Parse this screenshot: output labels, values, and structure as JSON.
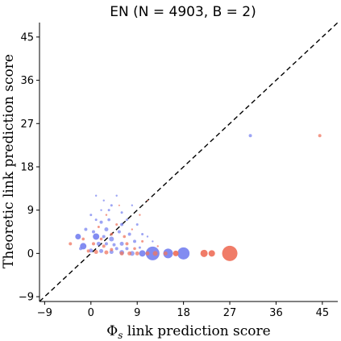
{
  "chart_data": {
    "type": "scatter",
    "title": "EN (N = 4903, B = 2)",
    "xlabel_symbol": "Φ",
    "xlabel_sub": "s",
    "xlabel_rest": " link prediction score",
    "ylabel": "Theoretic link prediction score",
    "xlim": [
      -10,
      48
    ],
    "ylim": [
      -10,
      48
    ],
    "xticks": [
      -9,
      0,
      9,
      18,
      27,
      36,
      45
    ],
    "yticks": [
      -9,
      0,
      9,
      18,
      27,
      36,
      45
    ],
    "xtick_labels": [
      "−9",
      "0",
      "9",
      "18",
      "27",
      "36",
      "45"
    ],
    "ytick_labels": [
      "−9",
      "0",
      "9",
      "18",
      "27",
      "36",
      "45"
    ],
    "reference_line": "y = x",
    "grid": false,
    "colors": {
      "blue": "#7b86f0",
      "red": "#ef7560"
    },
    "series": [
      {
        "color": "blue",
        "points": [
          {
            "x": 12,
            "y": 0,
            "s": 8.5
          },
          {
            "x": 18,
            "y": 0,
            "s": 7.5
          },
          {
            "x": 15,
            "y": 0,
            "s": 6
          },
          {
            "x": 10,
            "y": 0,
            "s": 4
          },
          {
            "x": 8,
            "y": 0,
            "s": 3
          },
          {
            "x": 6,
            "y": 0.2,
            "s": 3
          },
          {
            "x": 4,
            "y": 0.3,
            "s": 2.5
          },
          {
            "x": 2,
            "y": 0.5,
            "s": 2.5
          },
          {
            "x": 0,
            "y": 0.6,
            "s": 2.5
          },
          {
            "x": 1,
            "y": 3.5,
            "s": 4
          },
          {
            "x": -2.5,
            "y": 3.5,
            "s": 3.5
          },
          {
            "x": -1.5,
            "y": 1.5,
            "s": 4
          },
          {
            "x": 4,
            "y": 3,
            "s": 3
          },
          {
            "x": 6,
            "y": 2,
            "s": 2.5
          },
          {
            "x": 3,
            "y": 5,
            "s": 2.5
          },
          {
            "x": 2,
            "y": 6.5,
            "s": 2
          },
          {
            "x": 3.5,
            "y": 9,
            "s": 1.5
          },
          {
            "x": 5,
            "y": 12,
            "s": 1.2
          },
          {
            "x": 2.5,
            "y": 11,
            "s": 1.2
          },
          {
            "x": 4,
            "y": 10,
            "s": 1.5
          },
          {
            "x": 6,
            "y": 6,
            "s": 2
          },
          {
            "x": 7.5,
            "y": 4,
            "s": 2
          },
          {
            "x": 8.5,
            "y": 2.5,
            "s": 2
          },
          {
            "x": 5,
            "y": 1,
            "s": 2
          },
          {
            "x": 1.5,
            "y": 2,
            "s": 2.5
          },
          {
            "x": 2.5,
            "y": 3.5,
            "s": 2
          },
          {
            "x": 3,
            "y": 2,
            "s": 2
          },
          {
            "x": -1,
            "y": 5,
            "s": 2
          },
          {
            "x": 0,
            "y": 8,
            "s": 1.5
          },
          {
            "x": 1,
            "y": 12,
            "s": 1.2
          },
          {
            "x": 6,
            "y": 8.5,
            "s": 1.5
          },
          {
            "x": 7,
            "y": 7,
            "s": 1.5
          },
          {
            "x": 9,
            "y": 6,
            "s": 1.5
          },
          {
            "x": 10,
            "y": 4,
            "s": 1.5
          },
          {
            "x": 11,
            "y": 3.5,
            "s": 1.2
          },
          {
            "x": 12,
            "y": 2.5,
            "s": 1.2
          },
          {
            "x": 8,
            "y": 10,
            "s": 1.2
          },
          {
            "x": 5.5,
            "y": 4.5,
            "s": 2
          },
          {
            "x": 3.5,
            "y": 7,
            "s": 1.8
          },
          {
            "x": 0.5,
            "y": 4.5,
            "s": 2
          },
          {
            "x": -2,
            "y": 1,
            "s": 2
          },
          {
            "x": 7,
            "y": 1,
            "s": 2
          },
          {
            "x": 9.5,
            "y": 1.2,
            "s": 1.5
          },
          {
            "x": 4.5,
            "y": 1.8,
            "s": 2
          },
          {
            "x": 1,
            "y": 7,
            "s": 1.5
          },
          {
            "x": 2,
            "y": 9,
            "s": 1.2
          },
          {
            "x": 31,
            "y": 24.5,
            "s": 2
          }
        ]
      },
      {
        "color": "red",
        "points": [
          {
            "x": 27,
            "y": 0,
            "s": 9.5
          },
          {
            "x": 22,
            "y": 0,
            "s": 4.5
          },
          {
            "x": 23.5,
            "y": 0,
            "s": 4
          },
          {
            "x": 16.5,
            "y": 0,
            "s": 3.5
          },
          {
            "x": 12.5,
            "y": 0,
            "s": 3
          },
          {
            "x": 14.5,
            "y": 0,
            "s": 2.5
          },
          {
            "x": 11,
            "y": 0,
            "s": 2.5
          },
          {
            "x": 9,
            "y": 0,
            "s": 2.5
          },
          {
            "x": 7.5,
            "y": 0,
            "s": 2.5
          },
          {
            "x": 6,
            "y": 0,
            "s": 2.5
          },
          {
            "x": 3,
            "y": 0.2,
            "s": 2.5
          },
          {
            "x": 1,
            "y": 0.3,
            "s": 2.5
          },
          {
            "x": -0.5,
            "y": 0.5,
            "s": 2
          },
          {
            "x": -4,
            "y": 2,
            "s": 2
          },
          {
            "x": 0.5,
            "y": 2,
            "s": 2
          },
          {
            "x": 2,
            "y": 3,
            "s": 1.8
          },
          {
            "x": 4,
            "y": 4,
            "s": 1.8
          },
          {
            "x": 5,
            "y": 6,
            "s": 1.5
          },
          {
            "x": 3,
            "y": 8,
            "s": 1.2
          },
          {
            "x": 6.5,
            "y": 3.5,
            "s": 1.8
          },
          {
            "x": 8,
            "y": 5,
            "s": 1.2
          },
          {
            "x": 1.5,
            "y": 5.5,
            "s": 1.5
          },
          {
            "x": 9.5,
            "y": 8,
            "s": 1.2
          },
          {
            "x": 11,
            "y": 11,
            "s": 1
          },
          {
            "x": 5.5,
            "y": 10,
            "s": 1
          },
          {
            "x": 7,
            "y": 2,
            "s": 2
          },
          {
            "x": 10,
            "y": 2.5,
            "s": 1.5
          },
          {
            "x": 2.5,
            "y": 1.5,
            "s": 2
          },
          {
            "x": -1.5,
            "y": 3,
            "s": 1.8
          },
          {
            "x": 4,
            "y": 0.8,
            "s": 2
          },
          {
            "x": 8.5,
            "y": 1,
            "s": 1.8
          },
          {
            "x": 13,
            "y": 1.5,
            "s": 1.2
          },
          {
            "x": 44.5,
            "y": 24.5,
            "s": 2
          }
        ]
      }
    ]
  }
}
